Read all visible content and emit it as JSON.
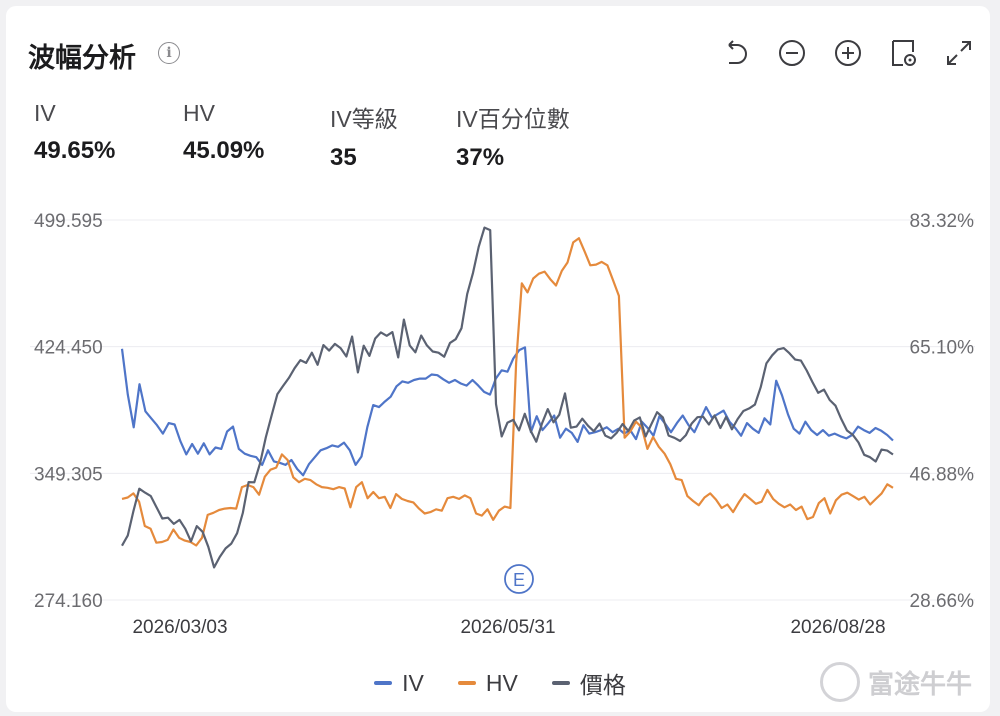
{
  "header": {
    "title": "波幅分析",
    "info_icon": "i"
  },
  "toolbar": {
    "icons": [
      "undo-icon",
      "zoom-out-icon",
      "zoom-in-icon",
      "settings-icon",
      "expand-icon"
    ]
  },
  "stats": [
    {
      "label": "IV",
      "value": "49.65%"
    },
    {
      "label": "HV",
      "value": "45.09%"
    },
    {
      "label": "IV等級",
      "value": "35"
    },
    {
      "label": "IV百分位數",
      "value": "37%"
    }
  ],
  "colors": {
    "iv": "#4f75c8",
    "hv": "#e58a3c",
    "price": "#5b6272",
    "grid": "#ececf0",
    "event": "#4f75c8"
  },
  "chart_data": {
    "type": "line",
    "left_axis": {
      "ticks": [
        "499.595",
        "424.450",
        "349.305",
        "274.160"
      ],
      "range": [
        274.16,
        499.595
      ]
    },
    "right_axis": {
      "ticks": [
        "83.32%",
        "65.10%",
        "46.88%",
        "28.66%"
      ],
      "range": [
        28.66,
        83.32
      ]
    },
    "x_ticks": [
      "2026/03/03",
      "2026/05/31",
      "2026/08/28"
    ],
    "event_marker": {
      "label": "E",
      "date": "2026/05/31"
    },
    "legend": [
      "IV",
      "HV",
      "價格"
    ],
    "series": [
      {
        "name": "IV",
        "axis": "right",
        "values": [
          64.8,
          58.2,
          53.5,
          59.7,
          55.8,
          54.8,
          53.8,
          52.6,
          54.1,
          53.9,
          51.5,
          49.6,
          51.1,
          49.7,
          51.2,
          49.6,
          50.6,
          50.4,
          52.9,
          53.6,
          50.4,
          49.7,
          49.4,
          49.2,
          48.1,
          50.2,
          48.6,
          48.4,
          48.1,
          48.8,
          47.5,
          46.6,
          48.2,
          49.2,
          50.2,
          50.5,
          50.9,
          50.7,
          51.3,
          50.2,
          48.1,
          49.3,
          53.5,
          56.7,
          56.4,
          57.2,
          57.9,
          59.4,
          60.1,
          59.9,
          60.3,
          60.5,
          60.5,
          61.1,
          61.0,
          60.4,
          59.9,
          60.3,
          59.8,
          59.5,
          60.3,
          59.5,
          58.6,
          58.2,
          60.5,
          61.7,
          61.5,
          63.4,
          64.6,
          65.0,
          52.8,
          55.1,
          53.1,
          54.1,
          55.2,
          52.0,
          53.3,
          52.7,
          51.4,
          53.8,
          52.6,
          52.8,
          53.1,
          53.5,
          52.8,
          53.3,
          52.6,
          53.1,
          51.8,
          54.3,
          53.4,
          52.3,
          55.1,
          54.0,
          52.8,
          54.1,
          55.2,
          53.8,
          52.8,
          54.6,
          56.4,
          54.9,
          55.4,
          55.9,
          54.3,
          53.4,
          52.3,
          54.1,
          53.3,
          52.7,
          54.8,
          53.9,
          60.2,
          58.1,
          55.4,
          53.3,
          52.6,
          54.3,
          53.1,
          52.4,
          53.1,
          52.3,
          52.6,
          52.2,
          51.9,
          52.4,
          53.6,
          53.1,
          52.7,
          53.4,
          53.0,
          52.4,
          51.6
        ],
        "x_dates_note": "daily series spanning 2026/03/03 to 2026/08/28 and beyond"
      },
      {
        "name": "HV",
        "axis": "right",
        "values": [
          43.2,
          43.4,
          44.0,
          42.8,
          39.3,
          38.9,
          36.9,
          37.0,
          37.3,
          38.8,
          37.6,
          37.2,
          37.0,
          36.5,
          37.6,
          40.9,
          41.2,
          41.6,
          41.8,
          41.9,
          41.8,
          44.9,
          45.2,
          44.9,
          43.8,
          46.4,
          47.4,
          47.7,
          49.6,
          48.8,
          46.3,
          45.6,
          46.1,
          45.9,
          45.3,
          44.9,
          44.8,
          44.6,
          44.9,
          44.7,
          42.0,
          44.9,
          45.6,
          43.3,
          44.2,
          43.3,
          43.5,
          41.9,
          43.9,
          43.2,
          42.9,
          42.7,
          41.8,
          41.1,
          41.3,
          41.7,
          41.5,
          43.3,
          43.5,
          43.2,
          43.7,
          43.3,
          41.1,
          40.8,
          41.7,
          40.2,
          41.5,
          42.1,
          41.9,
          62.7,
          74.2,
          72.9,
          74.9,
          75.6,
          75.9,
          74.8,
          73.9,
          76.0,
          77.2,
          80.1,
          80.7,
          78.8,
          76.8,
          76.9,
          77.3,
          76.8,
          74.6,
          72.4,
          52.0,
          52.9,
          54.3,
          53.5,
          50.4,
          52.1,
          50.7,
          49.7,
          48.2,
          46.1,
          45.9,
          43.6,
          42.9,
          42.3,
          43.4,
          44.0,
          43.1,
          41.9,
          42.4,
          41.3,
          42.7,
          43.9,
          43.2,
          42.5,
          42.8,
          44.5,
          43.2,
          42.5,
          42.0,
          42.4,
          41.6,
          42.1,
          40.3,
          40.6,
          42.6,
          43.3,
          41.1,
          43.0,
          43.8,
          44.1,
          43.6,
          43.1,
          43.5,
          42.4,
          43.2,
          44.0,
          45.3,
          44.8
        ]
      },
      {
        "name": "價格",
        "axis": "left",
        "values": [
          306.4,
          312.5,
          327.1,
          340.2,
          337.9,
          335.8,
          329.2,
          322.5,
          323.0,
          319.3,
          321.7,
          316.4,
          308.9,
          318.0,
          314.6,
          305.7,
          293.5,
          299.7,
          304.8,
          307.6,
          313.8,
          325.8,
          344.1,
          344.0,
          355.3,
          370.6,
          383.6,
          396.3,
          401.2,
          405.9,
          411.7,
          416.5,
          414.8,
          420.9,
          413.7,
          425.4,
          422.1,
          426.1,
          423.6,
          418.6,
          430.5,
          409.2,
          425.0,
          419.0,
          429.3,
          432.9,
          430.9,
          433.1,
          418.1,
          440.5,
          425.2,
          421.1,
          431.1,
          425.2,
          421.6,
          420.9,
          418.5,
          426.7,
          428.9,
          435.4,
          455.7,
          468.2,
          483.7,
          495.1,
          493.6,
          390.4,
          371.2,
          379.4,
          381.0,
          374.8,
          384.6,
          374.8,
          368.1,
          378.9,
          387.4,
          379.6,
          384.1,
          396.7,
          376.4,
          377.0,
          381.7,
          377.5,
          374.3,
          378.8,
          371.7,
          370.0,
          373.4,
          378.6,
          374.4,
          380.6,
          382.5,
          371.2,
          378.4,
          385.6,
          382.5,
          371.7,
          370.4,
          368.5,
          372.0,
          378.8,
          382.6,
          382.9,
          378.3,
          383.7,
          376.2,
          382.8,
          375.4,
          381.5,
          386.3,
          387.8,
          390.1,
          400.4,
          414.5,
          419.3,
          422.8,
          423.6,
          420.6,
          416.8,
          416.2,
          410.3,
          403.5,
          397.1,
          399.0,
          392.8,
          389.4,
          381.6,
          374.7,
          372.2,
          367.6,
          360.3,
          358.9,
          356.3,
          363.4,
          362.8,
          360.5
        ]
      }
    ]
  },
  "watermark": {
    "text": "富途牛牛"
  }
}
